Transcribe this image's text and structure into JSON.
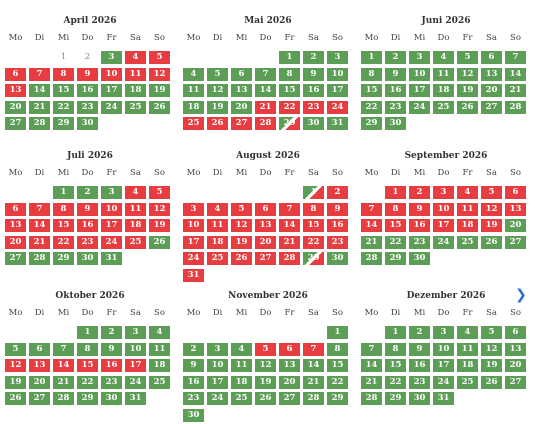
{
  "weekdays": [
    "Mo",
    "Di",
    "Mi",
    "Do",
    "Fr",
    "Sa",
    "So"
  ],
  "legend_colors": {
    "free": "#5c9e55",
    "booked": "#e83d40"
  },
  "next_icon": "chevron-right-icon",
  "next_glyph": "❯",
  "months": [
    {
      "name": "April 2026",
      "start": 2,
      "days": 30,
      "s": "nnfbbbbbbbbbbfffffffffffffffff"
    },
    {
      "name": "Mai 2026",
      "start": 4,
      "days": 31,
      "s": "ffffffffffffffffffffbbbbbbbbtff"
    },
    {
      "name": "Juni 2026",
      "start": 0,
      "days": 30,
      "s": "ffffffffffffffffffffffffffffff"
    },
    {
      "name": "Juli 2026",
      "start": 2,
      "days": 31,
      "s": "fffbbbbbbbbbbbbbbbbbbbbbbffffff"
    },
    {
      "name": "August 2026",
      "start": 5,
      "days": 31,
      "s": "tbbbbbbbbbbbbbbbbbbbbbbbbbbbtfb"
    },
    {
      "name": "September 2026",
      "start": 1,
      "days": 30,
      "s": "bbbbbbbbbbbbbbbbbbbfffffffffff"
    },
    {
      "name": "Oktober 2026",
      "start": 3,
      "days": 31,
      "s": "fffffffffffbbbbbbffffffffffffff"
    },
    {
      "name": "November 2026",
      "start": 6,
      "days": 30,
      "s": "ffffbbbfffffffffffffffffffffff"
    },
    {
      "name": "Dezember 2026",
      "start": 1,
      "days": 31,
      "s": "fffffffffffffffffffffffffffffff"
    }
  ]
}
